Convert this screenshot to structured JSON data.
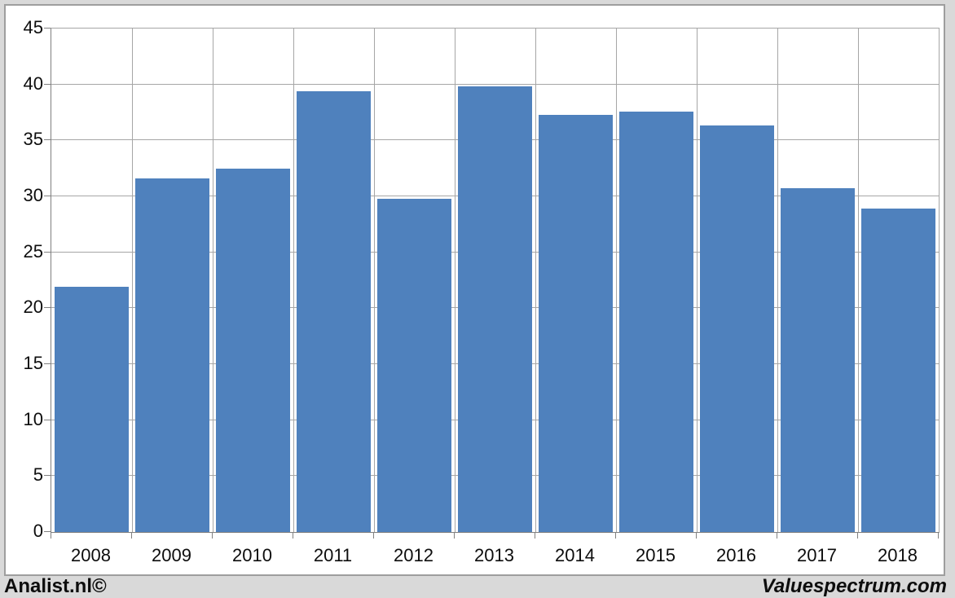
{
  "chart_data": {
    "type": "bar",
    "categories": [
      "2008",
      "2009",
      "2010",
      "2011",
      "2012",
      "2013",
      "2014",
      "2015",
      "2016",
      "2017",
      "2018"
    ],
    "values": [
      21.9,
      31.6,
      32.5,
      39.4,
      29.8,
      39.8,
      37.3,
      37.6,
      36.3,
      30.7,
      28.9
    ],
    "title": "",
    "xlabel": "",
    "ylabel": "",
    "ylim": [
      0,
      45
    ],
    "yticks": [
      0,
      5,
      10,
      15,
      20,
      25,
      30,
      35,
      40,
      45
    ],
    "grid": true,
    "legend": "none",
    "bar_color": "#4f81bd"
  },
  "footer": {
    "left": "Analist.nl©",
    "right": "Valuespectrum.com"
  },
  "colors": {
    "background": "#d9d9d9",
    "chart_background": "#ffffff",
    "frame_border": "#9e9e9e",
    "gridline": "#a6a6a6",
    "axis_line": "#808080",
    "bar": "#4f81bd",
    "text": "#0d0d0d"
  }
}
